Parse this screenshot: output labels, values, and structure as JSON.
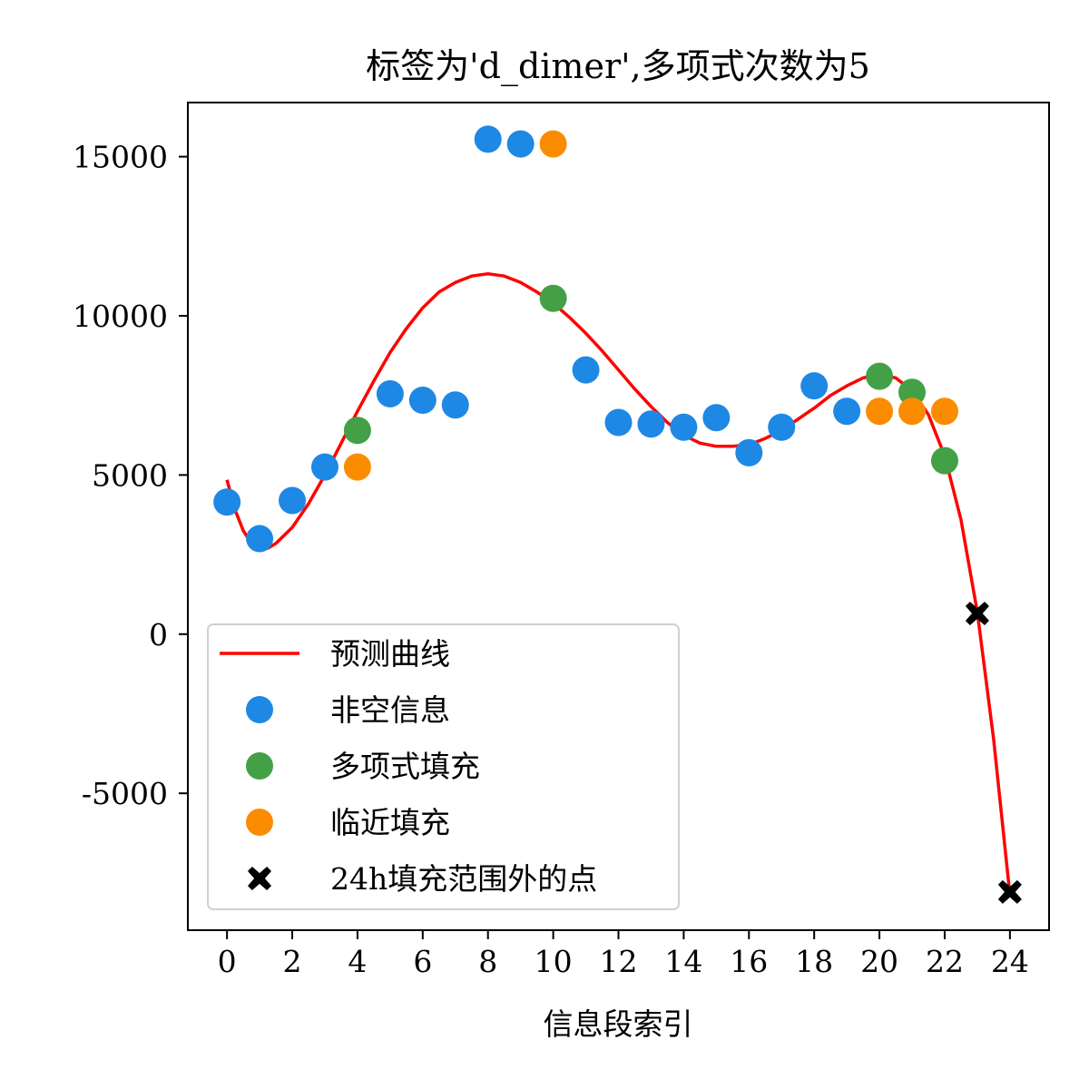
{
  "chart_data": {
    "type": "scatter",
    "title": "标签为'd_dimer',多项式次数为5",
    "xlabel": "信息段索引",
    "ylabel": "",
    "xlim": [
      -1.2,
      25.2
    ],
    "ylim": [
      -9300,
      16700
    ],
    "x_ticks": [
      0,
      2,
      4,
      6,
      8,
      10,
      12,
      14,
      16,
      18,
      20,
      22,
      24
    ],
    "y_ticks": [
      -5000,
      0,
      5000,
      10000,
      15000
    ],
    "grid": false,
    "legend_position": "lower-left",
    "series": [
      {
        "name": "预测曲线",
        "kind": "line",
        "color": "#ff0000",
        "x": [
          0,
          0.25,
          0.5,
          0.75,
          1,
          1.25,
          1.5,
          2,
          2.5,
          3,
          3.5,
          4,
          4.5,
          5,
          5.5,
          6,
          6.5,
          7,
          7.5,
          8,
          8.5,
          9,
          9.5,
          10,
          10.5,
          11,
          11.5,
          12,
          12.5,
          13,
          13.5,
          14,
          14.5,
          15,
          15.5,
          16,
          16.5,
          17,
          17.5,
          18,
          18.5,
          19,
          19.5,
          20,
          20.5,
          21,
          21.5,
          22,
          22.5,
          23,
          23.5,
          24
        ],
        "values": [
          4850,
          3900,
          3250,
          2850,
          2700,
          2700,
          2850,
          3350,
          4100,
          5000,
          6000,
          7000,
          7950,
          8850,
          9600,
          10250,
          10750,
          11050,
          11250,
          11320,
          11250,
          11050,
          10750,
          10400,
          9950,
          9450,
          8900,
          8300,
          7700,
          7150,
          6650,
          6250,
          6000,
          5900,
          5900,
          5950,
          6150,
          6400,
          6750,
          7100,
          7500,
          7800,
          8050,
          8150,
          8050,
          7650,
          6900,
          5600,
          3600,
          700,
          -3300,
          -8200
        ]
      },
      {
        "name": "非空信息",
        "kind": "scatter",
        "color": "#1e88e5",
        "x": [
          0,
          1,
          2,
          3,
          5,
          6,
          7,
          8,
          9,
          11,
          12,
          13,
          14,
          15,
          16,
          17,
          18,
          19
        ],
        "values": [
          4150,
          3000,
          4200,
          5250,
          7550,
          7350,
          7200,
          15550,
          15400,
          8300,
          6650,
          6600,
          6500,
          6800,
          5700,
          6500,
          7800,
          7000
        ]
      },
      {
        "name": "多项式填充",
        "kind": "scatter",
        "color": "#43a047",
        "x": [
          4,
          10,
          20,
          21,
          22
        ],
        "values": [
          6400,
          10550,
          8100,
          7600,
          5450
        ]
      },
      {
        "name": "临近填充",
        "kind": "scatter",
        "color": "#fb8c00",
        "x": [
          4,
          10,
          20,
          21,
          22
        ],
        "values": [
          5250,
          15400,
          7000,
          7000,
          7000
        ]
      },
      {
        "name": "24h填充范围外的点",
        "kind": "scatter",
        "color": "#000000",
        "marker": "x-filled",
        "x": [
          23,
          24
        ],
        "values": [
          650,
          -8100
        ]
      }
    ]
  }
}
